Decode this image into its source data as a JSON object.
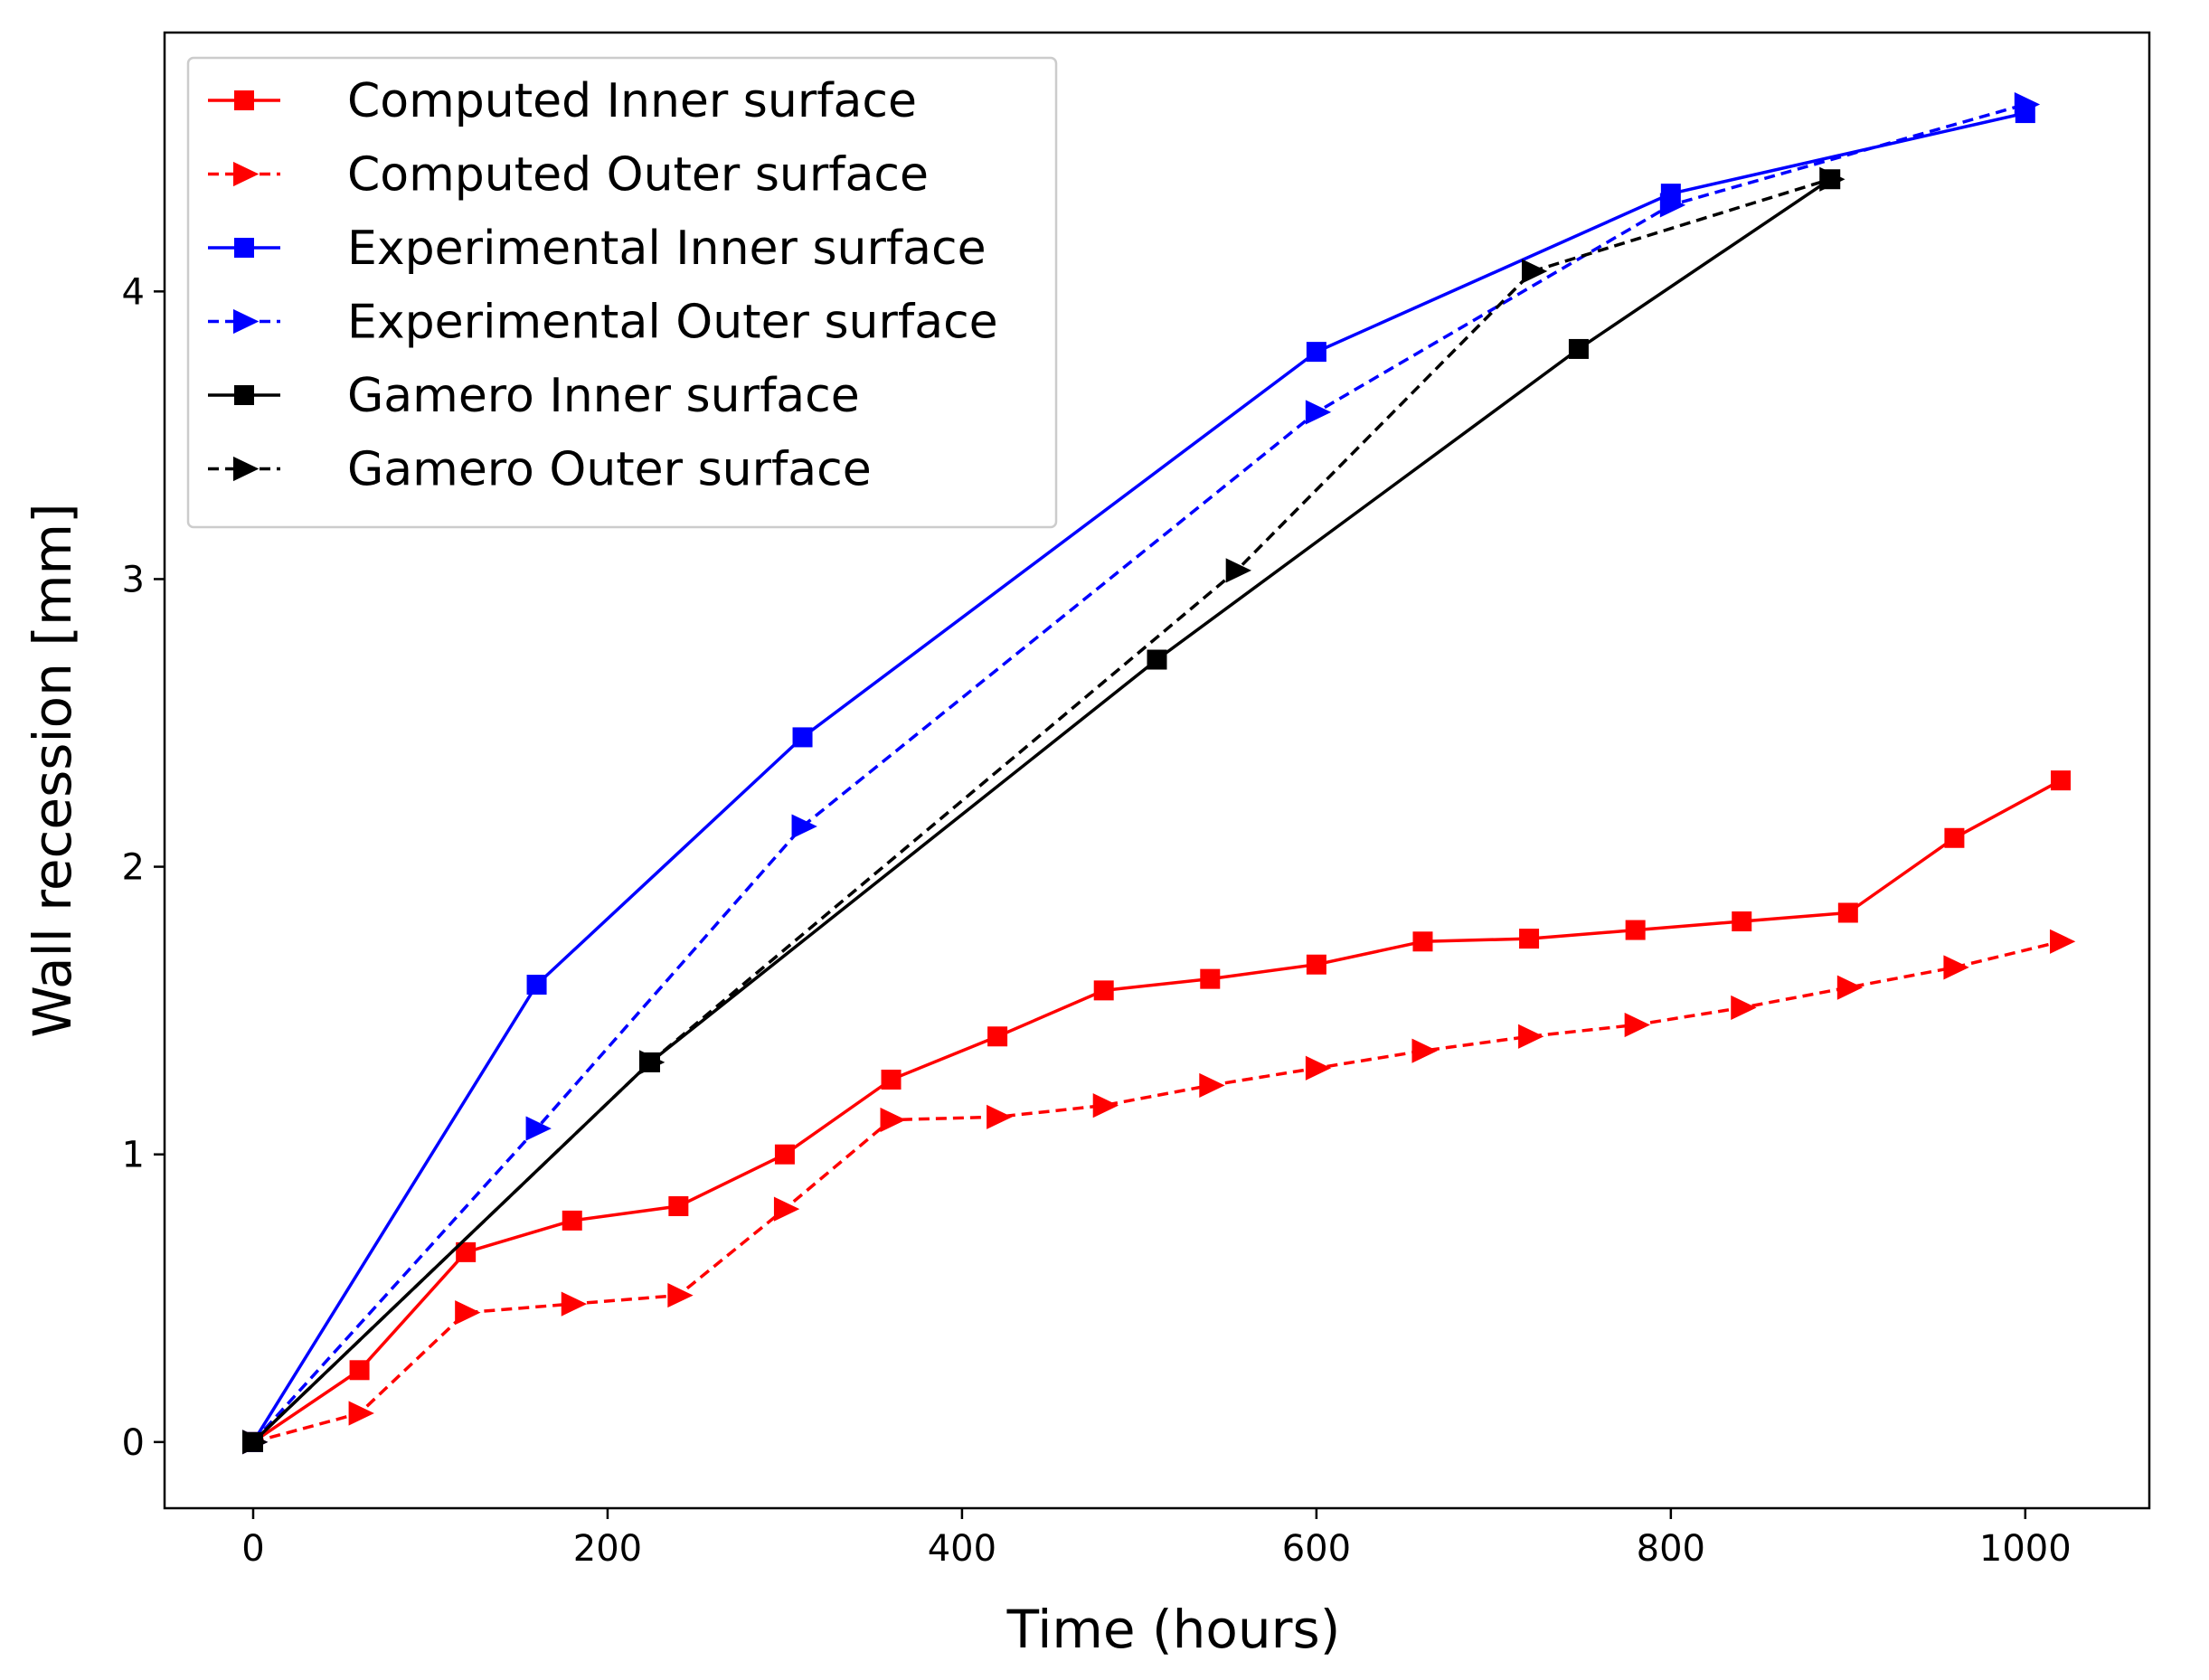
{
  "chart_data": {
    "type": "line",
    "title": "",
    "xlabel": "Time (hours)",
    "ylabel": "Wall recession [mm]",
    "xlim": [
      -50,
      1070
    ],
    "ylim": [
      -0.23,
      4.9
    ],
    "xticks": [
      0,
      200,
      400,
      600,
      800,
      1000
    ],
    "yticks": [
      0,
      1,
      2,
      3,
      4
    ],
    "grid": false,
    "legend_position": "upper-left",
    "series": [
      {
        "name": "Computed Inner surface",
        "color": "#ff0000",
        "linestyle": "solid",
        "marker": "square",
        "x": [
          0,
          60,
          120,
          180,
          240,
          300,
          360,
          420,
          480,
          540,
          600,
          660,
          720,
          780,
          840,
          900,
          960,
          1020
        ],
        "y": [
          0,
          0.25,
          0.66,
          0.77,
          0.82,
          1.0,
          1.26,
          1.41,
          1.57,
          1.61,
          1.66,
          1.74,
          1.75,
          1.78,
          1.81,
          1.84,
          2.1,
          2.3
        ]
      },
      {
        "name": "Computed Outer surface",
        "color": "#ff0000",
        "linestyle": "dashed",
        "marker": "triangle-right",
        "x": [
          0,
          60,
          120,
          180,
          240,
          300,
          360,
          420,
          480,
          540,
          600,
          660,
          720,
          780,
          840,
          900,
          960,
          1020
        ],
        "y": [
          0,
          0.1,
          0.45,
          0.48,
          0.51,
          0.81,
          1.12,
          1.13,
          1.17,
          1.24,
          1.3,
          1.36,
          1.41,
          1.45,
          1.51,
          1.58,
          1.65,
          1.74
        ]
      },
      {
        "name": "Experimental Inner surface",
        "color": "#0000ff",
        "linestyle": "solid",
        "marker": "square",
        "x": [
          0,
          160,
          310,
          600,
          800,
          1000
        ],
        "y": [
          0,
          1.59,
          2.45,
          3.79,
          4.34,
          4.62
        ]
      },
      {
        "name": "Experimental Outer surface",
        "color": "#0000ff",
        "linestyle": "dashed",
        "marker": "triangle-right",
        "x": [
          0,
          160,
          310,
          600,
          800,
          1000
        ],
        "y": [
          0,
          1.09,
          2.14,
          3.58,
          4.3,
          4.65
        ]
      },
      {
        "name": "Gamero Inner surface",
        "color": "#000000",
        "linestyle": "solid",
        "marker": "square",
        "x": [
          0,
          224,
          510,
          748,
          890
        ],
        "y": [
          0,
          1.32,
          2.72,
          3.8,
          4.39
        ]
      },
      {
        "name": "Gamero Outer surface",
        "color": "#000000",
        "linestyle": "dashed",
        "marker": "triangle-right",
        "x": [
          0,
          224,
          555,
          722,
          890
        ],
        "y": [
          0,
          1.32,
          3.03,
          4.07,
          4.39
        ]
      }
    ]
  }
}
